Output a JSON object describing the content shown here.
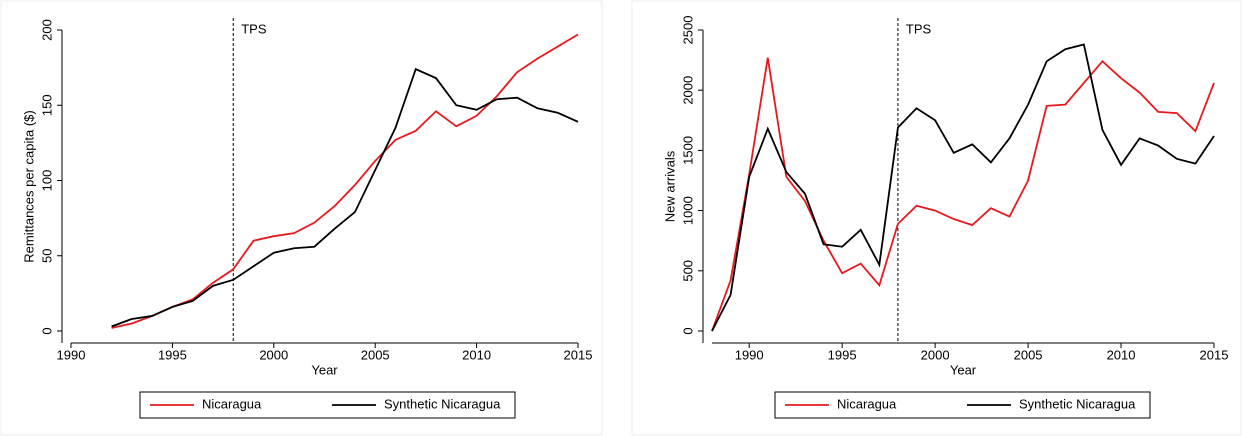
{
  "chart_data": [
    {
      "type": "line",
      "x_label": "Year",
      "y_label": "Remittances per capita ($)",
      "x": [
        1992,
        1993,
        1994,
        1995,
        1996,
        1997,
        1998,
        1999,
        2000,
        2001,
        2002,
        2003,
        2004,
        2005,
        2006,
        2007,
        2008,
        2009,
        2010,
        2011,
        2012,
        2013,
        2014,
        2015
      ],
      "series": [
        {
          "name": "Nicaragua",
          "color": "#e8191c",
          "values": [
            2,
            5,
            10,
            16,
            21,
            32,
            41,
            60,
            63,
            65,
            72,
            83,
            97,
            113,
            127,
            133,
            146,
            136,
            143,
            156,
            172,
            181,
            189,
            197
          ]
        },
        {
          "name": "Synthetic Nicaragua",
          "color": "#000000",
          "values": [
            3,
            8,
            10,
            16,
            20,
            30,
            34,
            43,
            52,
            55,
            56,
            68,
            79,
            107,
            135,
            174,
            168,
            150,
            147,
            154,
            155,
            148,
            145,
            139
          ]
        }
      ],
      "xlim": [
        1990,
        2015
      ],
      "xticks": [
        1990,
        1995,
        2000,
        2005,
        2010,
        2015
      ],
      "ylim": [
        0,
        200
      ],
      "yticks": [
        0,
        50,
        100,
        150,
        200
      ],
      "annotations": [
        {
          "x": 1998,
          "label": "TPS"
        }
      ],
      "legend": "bottom"
    },
    {
      "type": "line",
      "x_label": "Year",
      "y_label": "New arrivals",
      "x": [
        1988,
        1989,
        1990,
        1991,
        1992,
        1993,
        1994,
        1995,
        1996,
        1997,
        1998,
        1999,
        2000,
        2001,
        2002,
        2003,
        2004,
        2005,
        2006,
        2007,
        2008,
        2009,
        2010,
        2011,
        2012,
        2013,
        2014,
        2015
      ],
      "series": [
        {
          "name": "Nicaragua",
          "color": "#e8191c",
          "values": [
            0,
            420,
            1300,
            2270,
            1280,
            1080,
            750,
            480,
            560,
            380,
            890,
            1040,
            1000,
            930,
            880,
            1020,
            950,
            1250,
            1870,
            1880,
            2060,
            2240,
            2100,
            1980,
            1820,
            1810,
            1660,
            2060
          ]
        },
        {
          "name": "Synthetic Nicaragua",
          "color": "#000000",
          "values": [
            0,
            300,
            1280,
            1680,
            1320,
            1140,
            720,
            700,
            840,
            550,
            1690,
            1850,
            1750,
            1480,
            1550,
            1400,
            1600,
            1880,
            2240,
            2340,
            2380,
            1670,
            1380,
            1600,
            1540,
            1430,
            1390,
            1620
          ]
        }
      ],
      "xlim": [
        1988,
        2015
      ],
      "xticks": [
        1990,
        1995,
        2000,
        2005,
        2010,
        2015
      ],
      "ylim": [
        0,
        2500
      ],
      "yticks": [
        0,
        500,
        1000,
        1500,
        2000,
        2500
      ],
      "annotations": [
        {
          "x": 1998,
          "label": "TPS"
        }
      ],
      "legend": "bottom"
    }
  ]
}
